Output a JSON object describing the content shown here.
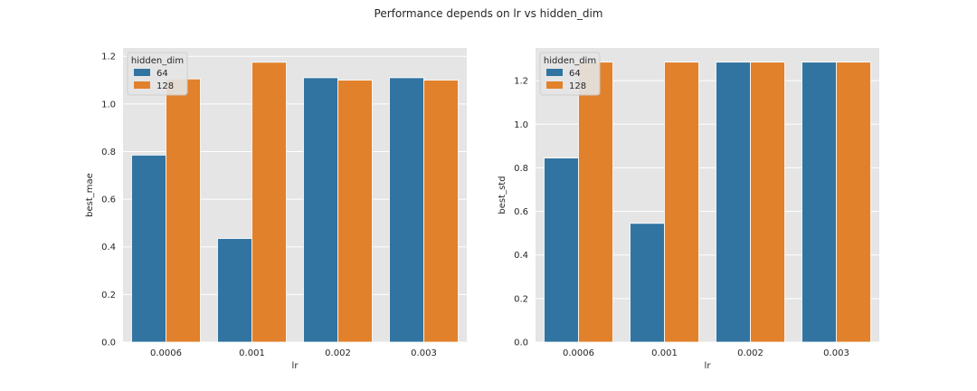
{
  "figure": {
    "suptitle": "Performance depends on lr vs hidden_dim"
  },
  "colors": {
    "series_64": "#3274a1",
    "series_128": "#e1812c",
    "plot_bg": "#e5e5e5",
    "grid": "#ffffff"
  },
  "chart_data": [
    {
      "type": "bar",
      "categories": [
        "0.0006",
        "0.001",
        "0.002",
        "0.003"
      ],
      "series": [
        {
          "name": "64",
          "values": [
            0.785,
            0.435,
            1.11,
            1.11
          ]
        },
        {
          "name": "128",
          "values": [
            1.105,
            1.175,
            1.1,
            1.1
          ]
        }
      ],
      "xlabel": "lr",
      "ylabel": "best_mae",
      "ylim": [
        0,
        1.235
      ],
      "yticks": [
        0.0,
        0.2,
        0.4,
        0.6,
        0.8,
        1.0,
        1.2
      ],
      "yticklabels": [
        "0.0",
        "0.2",
        "0.4",
        "0.6",
        "0.8",
        "1.0",
        "1.2"
      ],
      "legend_title": "hidden_dim",
      "legend_position": "top-left",
      "grid": true
    },
    {
      "type": "bar",
      "categories": [
        "0.0006",
        "0.001",
        "0.002",
        "0.003"
      ],
      "series": [
        {
          "name": "64",
          "values": [
            0.845,
            0.545,
            1.285,
            1.285
          ]
        },
        {
          "name": "128",
          "values": [
            1.285,
            1.285,
            1.285,
            1.285
          ]
        }
      ],
      "xlabel": "lr",
      "ylabel": "best_std",
      "ylim": [
        0,
        1.35
      ],
      "yticks": [
        0.0,
        0.2,
        0.4,
        0.6,
        0.8,
        1.0,
        1.2
      ],
      "yticklabels": [
        "0.0",
        "0.2",
        "0.4",
        "0.6",
        "0.8",
        "1.0",
        "1.2"
      ],
      "legend_title": "hidden_dim",
      "legend_position": "top-left",
      "grid": true
    }
  ]
}
